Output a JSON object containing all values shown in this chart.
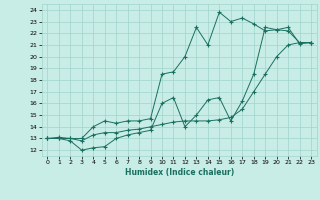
{
  "xlabel": "Humidex (Indice chaleur)",
  "bg_color": "#c8ece6",
  "grid_color": "#a0d4cc",
  "line_color": "#1a7060",
  "xlim": [
    -0.5,
    23.5
  ],
  "ylim": [
    11.5,
    24.5
  ],
  "xticks": [
    0,
    1,
    2,
    3,
    4,
    5,
    6,
    7,
    8,
    9,
    10,
    11,
    12,
    13,
    14,
    15,
    16,
    17,
    18,
    19,
    20,
    21,
    22,
    23
  ],
  "yticks": [
    12,
    13,
    14,
    15,
    16,
    17,
    18,
    19,
    20,
    21,
    22,
    23,
    24
  ],
  "series1_x": [
    0,
    1,
    2,
    3,
    4,
    5,
    6,
    7,
    8,
    9,
    10,
    11,
    12,
    13,
    14,
    15,
    16,
    17,
    18,
    19,
    20,
    21,
    22,
    23
  ],
  "series1_y": [
    13.0,
    13.1,
    13.0,
    12.8,
    13.3,
    13.5,
    13.5,
    13.7,
    13.8,
    14.0,
    14.2,
    14.4,
    14.5,
    14.5,
    14.5,
    14.6,
    14.8,
    15.5,
    17.0,
    18.5,
    20.0,
    21.0,
    21.2,
    21.2
  ],
  "series2_x": [
    0,
    1,
    2,
    3,
    4,
    5,
    6,
    7,
    8,
    9,
    10,
    11,
    12,
    13,
    14,
    15,
    16,
    17,
    18,
    19,
    20,
    21,
    22,
    23
  ],
  "series2_y": [
    13.0,
    13.0,
    12.8,
    12.0,
    12.2,
    12.3,
    13.0,
    13.3,
    13.5,
    13.7,
    16.0,
    16.5,
    14.0,
    15.0,
    16.3,
    16.5,
    14.5,
    16.2,
    18.5,
    22.5,
    22.3,
    22.2,
    21.2,
    21.2
  ],
  "series3_x": [
    0,
    1,
    2,
    3,
    4,
    5,
    6,
    7,
    8,
    9,
    10,
    11,
    12,
    13,
    14,
    15,
    16,
    17,
    18,
    19,
    20,
    21,
    22,
    23
  ],
  "series3_y": [
    13.0,
    13.0,
    13.0,
    13.0,
    14.0,
    14.5,
    14.3,
    14.5,
    14.5,
    14.7,
    18.5,
    18.7,
    20.0,
    22.5,
    21.0,
    23.8,
    23.0,
    23.3,
    22.8,
    22.2,
    22.3,
    22.5,
    21.1,
    21.2
  ]
}
